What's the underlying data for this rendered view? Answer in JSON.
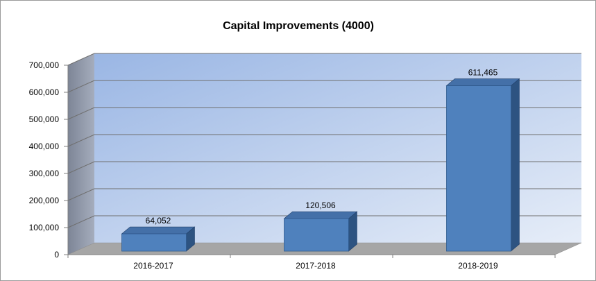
{
  "chart_data": {
    "type": "bar",
    "title": "Capital Improvements (4000)",
    "categories": [
      "2016-2017",
      "2017-2018",
      "2018-2019"
    ],
    "values": [
      64052,
      120506,
      611465
    ],
    "value_labels": [
      "64,052",
      "120,506",
      "611,465"
    ],
    "ylim": [
      0,
      700000
    ],
    "yticks": [
      0,
      100000,
      200000,
      300000,
      400000,
      500000,
      600000,
      700000
    ],
    "ytick_labels": [
      "0",
      "100,000",
      "200,000",
      "300,000",
      "400,000",
      "500,000",
      "600,000",
      "700,000"
    ],
    "grid": true,
    "legend": "none",
    "style": "3d-column",
    "colors": {
      "bar_front": "#4f81bd",
      "bar_side": "#2d5381",
      "bar_top": "#4470a8",
      "wall_light": "#dfe8f6",
      "wall_dark": "#9ab6e4",
      "side_wall": "#8b93a3",
      "floor": "#a6a6a6"
    }
  }
}
